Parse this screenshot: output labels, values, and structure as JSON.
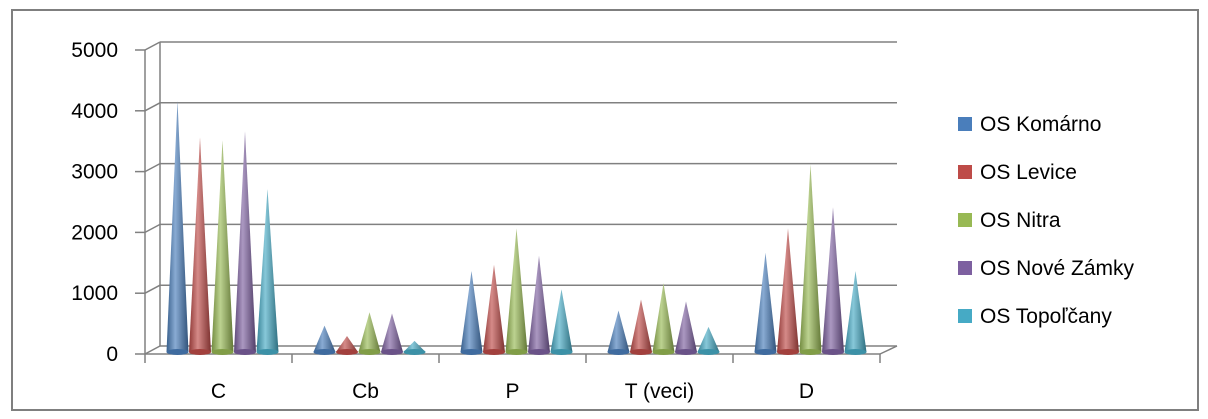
{
  "chart_data": {
    "type": "bar",
    "bar_shape": "cone-3d",
    "title": "",
    "xlabel": "",
    "ylabel": "",
    "categories": [
      "C",
      "Cb",
      "P",
      "T (veci)",
      "D"
    ],
    "ylim": [
      0,
      5000
    ],
    "yticks": [
      "0",
      "1000",
      "2000",
      "3000",
      "4000",
      "5000"
    ],
    "grid": true,
    "legend_position": "right",
    "series": [
      {
        "name": "OS Komárno",
        "color": "#4a7ebb",
        "values": [
          4100,
          400,
          1300,
          650,
          1600
        ]
      },
      {
        "name": "OS Levice",
        "color": "#be4b48",
        "values": [
          3500,
          230,
          1400,
          830,
          2000
        ]
      },
      {
        "name": "OS Nitra",
        "color": "#98b954",
        "values": [
          3450,
          620,
          2000,
          1100,
          3050
        ]
      },
      {
        "name": "OS Nové Zámky",
        "color": "#7d60a0",
        "values": [
          3600,
          600,
          1550,
          800,
          2350
        ]
      },
      {
        "name": "OS Topoľčany",
        "color": "#46aac5",
        "values": [
          2650,
          150,
          1000,
          380,
          1300
        ]
      }
    ]
  }
}
